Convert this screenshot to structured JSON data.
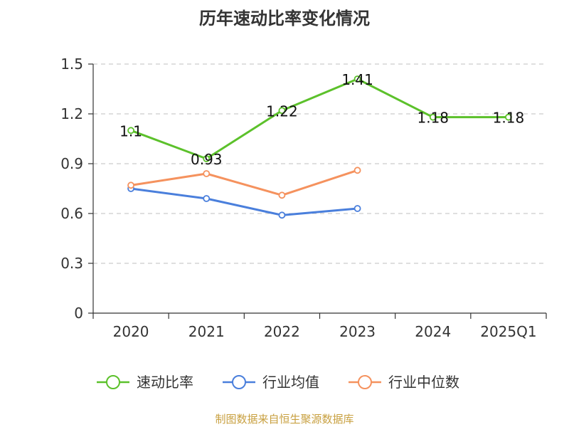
{
  "chart_data": {
    "type": "line",
    "title": "历年速动比率变化情况",
    "categories": [
      "2020",
      "2021",
      "2022",
      "2023",
      "2024",
      "2025Q1"
    ],
    "yticks": [
      "0",
      "0.3",
      "0.6",
      "0.9",
      "1.2",
      "1.5"
    ],
    "ylim": [
      0,
      1.5
    ],
    "grid": true,
    "legend_position": "bottom",
    "series": [
      {
        "name": "速动比率",
        "color": "#5cc12b",
        "values": [
          1.1,
          0.93,
          1.22,
          1.41,
          1.18,
          1.18
        ],
        "labels": [
          "1.1",
          "0.93",
          "1.22",
          "1.41",
          "1.18",
          "1.18"
        ]
      },
      {
        "name": "行业均值",
        "color": "#4a7fdc",
        "values": [
          0.75,
          0.69,
          0.59,
          0.63,
          null,
          null
        ]
      },
      {
        "name": "行业中位数",
        "color": "#f5925e",
        "values": [
          0.77,
          0.84,
          0.71,
          0.86,
          null,
          null
        ]
      }
    ]
  },
  "source": "制图数据来自恒生聚源数据库"
}
